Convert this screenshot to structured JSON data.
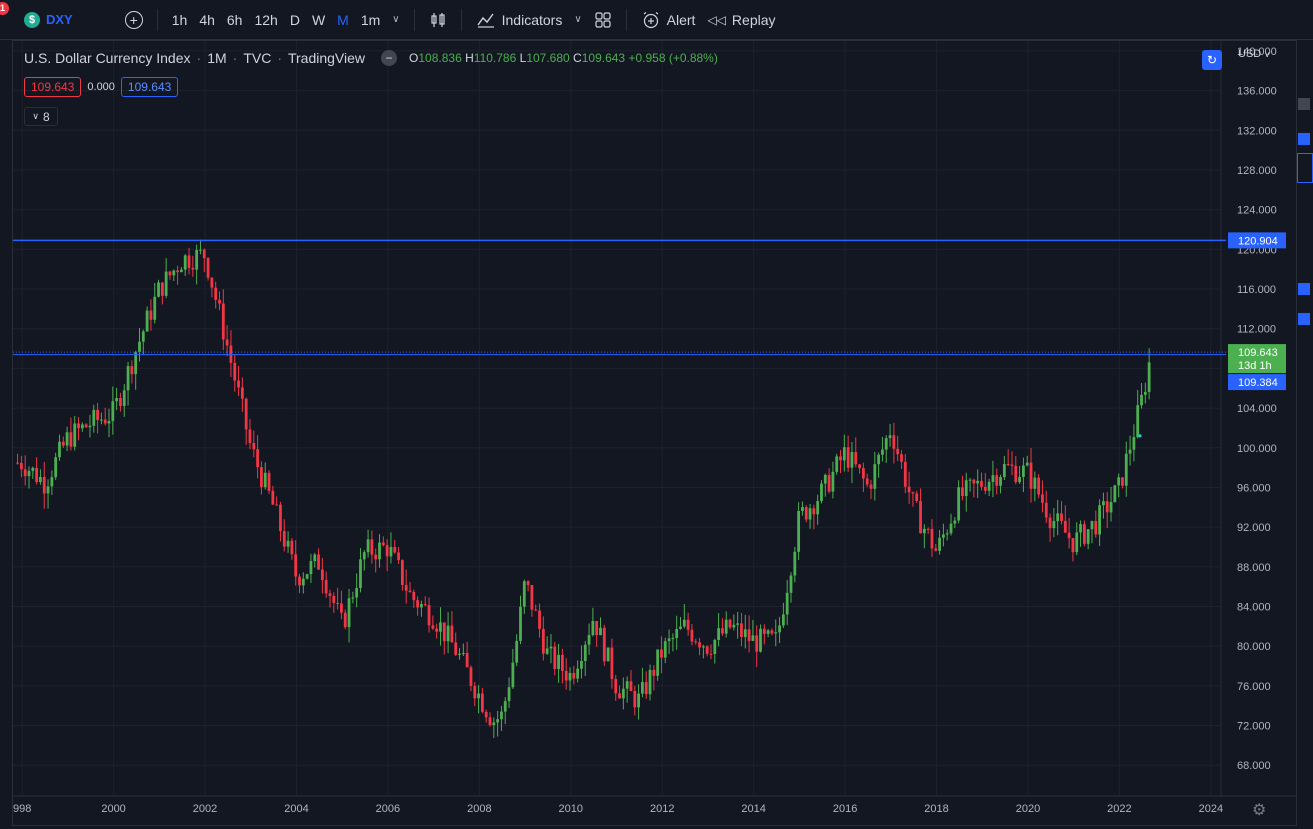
{
  "toolbar": {
    "notification_count": "1",
    "symbol": "DXY",
    "symbol_badge": "$",
    "intervals": [
      "1h",
      "4h",
      "6h",
      "12h",
      "D",
      "W",
      "M",
      "1m"
    ],
    "active_interval": "M",
    "indicators_label": "Indicators",
    "alert_label": "Alert",
    "replay_label": "Replay",
    "icons": [
      "add-symbol-icon",
      "candles-icon",
      "indicators-icon",
      "layout-icon",
      "alert-icon",
      "replay-icon"
    ]
  },
  "legend": {
    "title": "U.S. Dollar Currency Index",
    "interval": "1M",
    "exchange": "TVC",
    "source": "TradingView",
    "open_label": "O",
    "open": "108.836",
    "high_label": "H",
    "high": "110.786",
    "low_label": "L",
    "low": "107.680",
    "close_label": "C",
    "close": "109.643",
    "change": "+0.958 (+0.88%)",
    "sell_price": "109.643",
    "spread": "0.000",
    "buy_price": "109.643",
    "collapsed_count": "8"
  },
  "price_scale": {
    "currency": "USD",
    "last_price": "109.643",
    "countdown": "13d 1h",
    "line_price_1": "120.904",
    "line_price_2": "109.384"
  },
  "colors": {
    "up": "#4caf50",
    "down": "#f23645",
    "line": "#2962ff",
    "background": "#131722",
    "grid": "#1e222d"
  },
  "chart_data": {
    "type": "candlestick",
    "title": "U.S. Dollar Currency Index · 1M · TVC · TradingView",
    "xlabel": "",
    "ylabel": "",
    "x_ticks": [
      "998",
      "2000",
      "2002",
      "2004",
      "2006",
      "2008",
      "2010",
      "2012",
      "2014",
      "2016",
      "2018",
      "2020",
      "2022",
      "2024"
    ],
    "y_ticks": [
      "140.000",
      "136.000",
      "132.000",
      "128.000",
      "124.000",
      "120.000",
      "116.000",
      "112.000",
      "108.000",
      "104.000",
      "100.000",
      "96.000",
      "92.000",
      "88.000",
      "84.000",
      "80.000",
      "76.000",
      "72.000",
      "68.000"
    ],
    "ylim": [
      65,
      141
    ],
    "xlim": [
      1997.8,
      2024.2
    ],
    "horizontal_lines": [
      120.904,
      109.384
    ],
    "series": [
      {
        "years": [
          1998.0,
          1998.5,
          1999.0,
          1999.5,
          2000.0,
          2000.5,
          2001.0,
          2001.5,
          2002.0,
          2002.5,
          2003.0,
          2003.5,
          2004.0,
          2004.5,
          2005.0,
          2005.5,
          2006.0,
          2006.5,
          2007.0,
          2007.5,
          2008.0,
          2008.3,
          2008.5,
          2008.8,
          2009.0,
          2009.5,
          2010.0,
          2010.5,
          2011.0,
          2011.5,
          2012.0,
          2012.5,
          2013.0,
          2013.5,
          2014.0,
          2014.5,
          2015.0,
          2015.5,
          2016.0,
          2016.5,
          2017.0,
          2017.5,
          2018.0,
          2018.5,
          2019.0,
          2019.5,
          2020.0,
          2020.5,
          2021.0,
          2021.5,
          2022.0,
          2022.5,
          2022.7
        ],
        "closes": [
          98.5,
          96.5,
          101.0,
          102.5,
          103.5,
          110.0,
          116.0,
          119.0,
          119.5,
          110.0,
          100.0,
          94.0,
          87.0,
          88.5,
          82.0,
          89.5,
          90.0,
          85.0,
          83.0,
          79.5,
          75.0,
          72.5,
          73.0,
          80.0,
          86.5,
          79.0,
          77.0,
          83.0,
          76.0,
          74.5,
          79.5,
          82.0,
          80.0,
          82.0,
          80.5,
          80.5,
          93.0,
          95.5,
          99.5,
          96.0,
          102.0,
          94.0,
          89.5,
          95.0,
          96.5,
          98.0,
          97.5,
          93.0,
          90.5,
          92.5,
          96.0,
          105.0,
          109.643
        ]
      }
    ]
  }
}
